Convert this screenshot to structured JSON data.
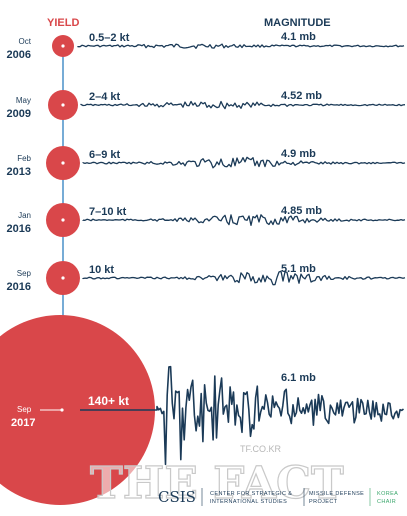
{
  "header": {
    "yield_title": "YIELD",
    "magnitude_title": "MAGNITUDE"
  },
  "colors": {
    "red": "#d9474a",
    "navy": "#1b3a57",
    "white": "#ffffff",
    "green": "#3aa66b"
  },
  "chart_data": {
    "type": "timeline-seismograph",
    "events": [
      {
        "month": "Oct",
        "year": "2006",
        "yield": "0.5–2 kt",
        "magnitude": "4.1 mb",
        "mag_value": 4.1,
        "yield_max_kt": 2
      },
      {
        "month": "May",
        "year": "2009",
        "yield": "2–4 kt",
        "magnitude": "4.52 mb",
        "mag_value": 4.52,
        "yield_max_kt": 4
      },
      {
        "month": "Feb",
        "year": "2013",
        "yield": "6–9 kt",
        "magnitude": "4.9 mb",
        "mag_value": 4.9,
        "yield_max_kt": 9
      },
      {
        "month": "Jan",
        "year": "2016",
        "yield": "7–10 kt",
        "magnitude": "4.85 mb",
        "mag_value": 4.85,
        "yield_max_kt": 10
      },
      {
        "month": "Sep",
        "year": "2016",
        "yield": "10 kt",
        "magnitude": "5.1 mb",
        "mag_value": 5.1,
        "yield_max_kt": 10
      },
      {
        "month": "Sep",
        "year": "2017",
        "yield": "140+ kt",
        "magnitude": "6.1 mb",
        "mag_value": 6.1,
        "yield_max_kt": 140
      }
    ]
  },
  "watermark": {
    "site": "TF.CO.KR",
    "brand": "THE FACT"
  },
  "credit": {
    "logo": "CSIS",
    "org_line1": "CENTER FOR STRATEGIC &",
    "org_line2": "INTERNATIONAL STUDIES",
    "project_line1": "MISSILE DEFENSE",
    "project_line2": "PROJECT",
    "chair_line1": "KOREA",
    "chair_line2": "CHAIR"
  }
}
